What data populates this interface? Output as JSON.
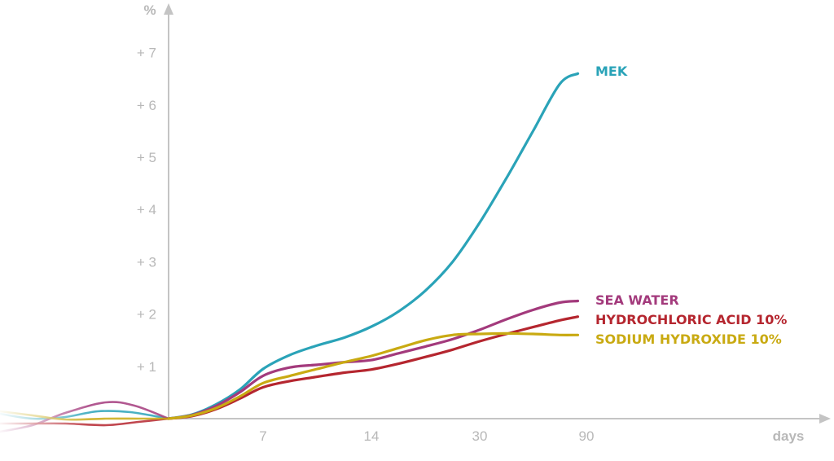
{
  "chart_data": {
    "type": "line",
    "ylabel": "%",
    "xlabel": "days",
    "x_ticks": [
      "7",
      "14",
      "30",
      "90"
    ],
    "y_ticks": [
      "+ 1",
      "+ 2",
      "+ 3",
      "+ 4",
      "+ 5",
      "+ 6",
      "+ 7"
    ],
    "y_tick_values": [
      1,
      2,
      3,
      4,
      5,
      6,
      7
    ],
    "ylim": [
      0,
      7.6
    ],
    "grid": false,
    "legend": "labels at line ends (right)",
    "series": [
      {
        "name": "MEK",
        "color": "#2aa3b8",
        "points": [
          [
            0,
            0
          ],
          [
            0.25,
            0.08
          ],
          [
            0.5,
            0.27
          ],
          [
            0.75,
            0.55
          ],
          [
            1,
            0.95
          ],
          [
            1.25,
            1.22
          ],
          [
            1.5,
            1.4
          ],
          [
            1.75,
            1.55
          ],
          [
            2,
            1.76
          ],
          [
            2.25,
            2.05
          ],
          [
            2.5,
            2.45
          ],
          [
            2.75,
            3.0
          ],
          [
            3,
            3.75
          ],
          [
            3.25,
            4.6
          ],
          [
            3.5,
            5.5
          ],
          [
            3.75,
            6.4
          ],
          [
            3.92,
            6.6
          ]
        ]
      },
      {
        "name": "SEA WATER",
        "color": "#a33a7c",
        "points": [
          [
            0,
            0
          ],
          [
            0.25,
            0.07
          ],
          [
            0.5,
            0.24
          ],
          [
            0.75,
            0.5
          ],
          [
            1,
            0.82
          ],
          [
            1.25,
            0.98
          ],
          [
            1.5,
            1.03
          ],
          [
            1.75,
            1.08
          ],
          [
            2,
            1.12
          ],
          [
            2.25,
            1.25
          ],
          [
            2.5,
            1.38
          ],
          [
            2.75,
            1.52
          ],
          [
            3,
            1.7
          ],
          [
            3.25,
            1.9
          ],
          [
            3.5,
            2.08
          ],
          [
            3.75,
            2.22
          ],
          [
            3.92,
            2.25
          ]
        ]
      },
      {
        "name": "HYDROCHLORIC ACID 10%",
        "color": "#b5262f",
        "points": [
          [
            0,
            0
          ],
          [
            0.25,
            0.05
          ],
          [
            0.5,
            0.18
          ],
          [
            0.75,
            0.38
          ],
          [
            1,
            0.6
          ],
          [
            1.25,
            0.72
          ],
          [
            1.5,
            0.8
          ],
          [
            1.75,
            0.88
          ],
          [
            2,
            0.94
          ],
          [
            2.25,
            1.05
          ],
          [
            2.5,
            1.18
          ],
          [
            2.75,
            1.32
          ],
          [
            3,
            1.48
          ],
          [
            3.25,
            1.62
          ],
          [
            3.5,
            1.75
          ],
          [
            3.75,
            1.88
          ],
          [
            3.92,
            1.95
          ]
        ]
      },
      {
        "name": "SODIUM HYDROXIDE 10%",
        "color": "#c9aa12",
        "points": [
          [
            0,
            0
          ],
          [
            0.25,
            0.06
          ],
          [
            0.5,
            0.2
          ],
          [
            0.75,
            0.42
          ],
          [
            1,
            0.68
          ],
          [
            1.25,
            0.82
          ],
          [
            1.5,
            0.95
          ],
          [
            1.75,
            1.08
          ],
          [
            2,
            1.2
          ],
          [
            2.25,
            1.35
          ],
          [
            2.5,
            1.5
          ],
          [
            2.75,
            1.6
          ],
          [
            3,
            1.62
          ],
          [
            3.25,
            1.63
          ],
          [
            3.5,
            1.62
          ],
          [
            3.75,
            1.6
          ],
          [
            3.92,
            1.6
          ]
        ]
      }
    ]
  }
}
